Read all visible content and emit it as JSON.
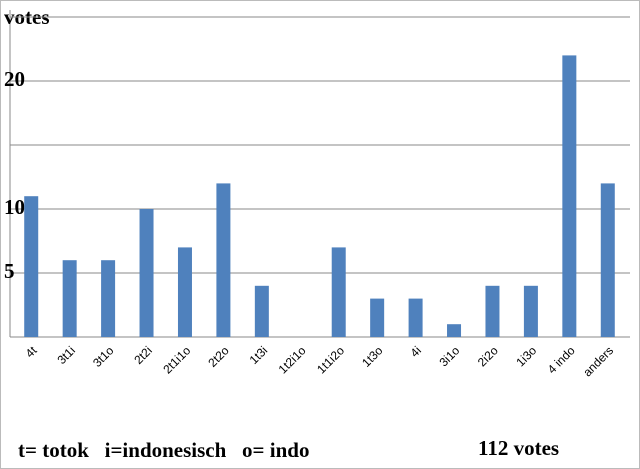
{
  "chart_data": {
    "type": "bar",
    "y_label": "votes",
    "categories": [
      "4t",
      "3t1i",
      "3t1o",
      "2t2i",
      "2t1i1o",
      "2t2o",
      "1t3i",
      "1t2i1o",
      "1t1i2o",
      "1t3o",
      "4i",
      "3i1o",
      "2i2o",
      "1i3o",
      "4 indo",
      "anders"
    ],
    "values": [
      11,
      6,
      6,
      10,
      7,
      12,
      4,
      0,
      7,
      3,
      3,
      1,
      4,
      4,
      22,
      12
    ],
    "color": "#4f81bd",
    "ylim": [
      0,
      25
    ],
    "yticks": [
      5,
      10,
      20
    ],
    "gridlines": [
      0,
      5,
      10,
      15,
      20,
      25
    ],
    "grid": true,
    "legend_note": "t= totok   i=indonesisch   o= indo",
    "total_note": "112 votes"
  }
}
